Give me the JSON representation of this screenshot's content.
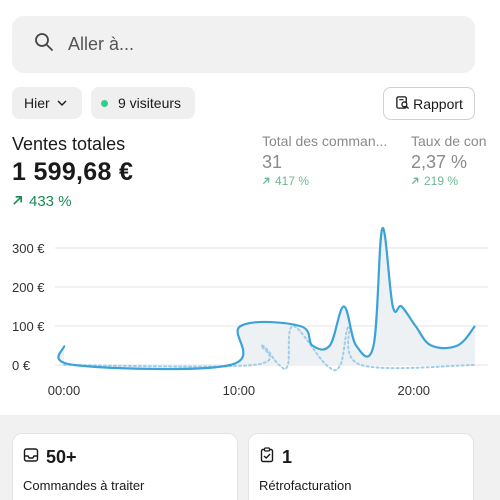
{
  "search": {
    "placeholder": "Aller à..."
  },
  "filters": {
    "date_label": "Hier",
    "visitors_label": "9 visiteurs"
  },
  "report_button": {
    "label": "Rapport"
  },
  "main_metric": {
    "label": "Ventes totales",
    "value": "1 599,68 €",
    "delta": "433 %"
  },
  "sub_metrics": [
    {
      "label": "Total des comman...",
      "value": "31",
      "delta": "417 %"
    },
    {
      "label": "Taux de con",
      "value": "2,37 %",
      "delta": "219 %"
    }
  ],
  "chart_data": {
    "type": "line",
    "y_ticks": [
      "300 €",
      "200 €",
      "100 €",
      "0 €"
    ],
    "x_ticks": [
      "00:00",
      "10:00",
      "20:00"
    ],
    "ylim": [
      0,
      300
    ],
    "xlim": [
      0,
      23.5
    ],
    "series": [
      {
        "style": "solid",
        "color": "#3ba3d8",
        "points": [
          [
            0.0,
            50
          ],
          [
            0.6,
            0
          ],
          [
            9.5,
            0
          ],
          [
            10.1,
            100
          ],
          [
            13.5,
            100
          ],
          [
            14.2,
            50
          ],
          [
            15.2,
            50
          ],
          [
            16.0,
            150
          ],
          [
            16.7,
            50
          ],
          [
            17.7,
            50
          ],
          [
            18.2,
            350
          ],
          [
            18.8,
            150
          ],
          [
            19.3,
            150
          ],
          [
            20.1,
            100
          ],
          [
            21.0,
            50
          ],
          [
            22.5,
            50
          ],
          [
            23.5,
            100
          ]
        ]
      },
      {
        "style": "dotted",
        "color": "#9fcde8",
        "points": [
          [
            0.0,
            0
          ],
          [
            10.8,
            0
          ],
          [
            11.3,
            50
          ],
          [
            12.3,
            0
          ],
          [
            12.8,
            0
          ],
          [
            13.1,
            100
          ],
          [
            15.0,
            0
          ],
          [
            15.8,
            0
          ],
          [
            16.3,
            100
          ],
          [
            17.0,
            0
          ],
          [
            23.5,
            0
          ]
        ]
      }
    ]
  },
  "cards": [
    {
      "value": "50+",
      "label": "Commandes à traiter",
      "icon": "inbox-icon"
    },
    {
      "value": "1",
      "label": "Rétrofacturation",
      "icon": "clipboard-check-icon"
    }
  ],
  "colors": {
    "accent_line": "#3ba3d8",
    "positive": "#1b8a57",
    "status_dot": "#2fcf8f"
  }
}
